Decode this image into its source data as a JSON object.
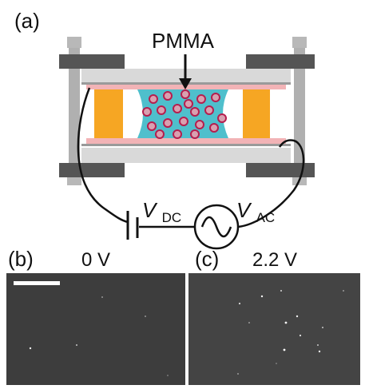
{
  "panel_a": {
    "label": "(a)",
    "material_label": "PMMA",
    "vdc_symbol": "V",
    "vdc_subscript": "DC",
    "vac_symbol": "V",
    "vac_subscript": "AC"
  },
  "panel_b": {
    "label": "(b)",
    "voltage": "0 V"
  },
  "panel_c": {
    "label": "(c)",
    "voltage": "2.2 V"
  },
  "colors": {
    "liquid": "#4fbfcc",
    "particle_fill": "#d9a0b0",
    "particle_stroke": "#b51e4e",
    "spacer": "#f6a623",
    "electrode_film": "#f2b3b6",
    "glass": "#d9d9d9",
    "clamp": "#555555",
    "rod": "#b0b0b0",
    "micrograph_bg": "#3a3a3a"
  }
}
